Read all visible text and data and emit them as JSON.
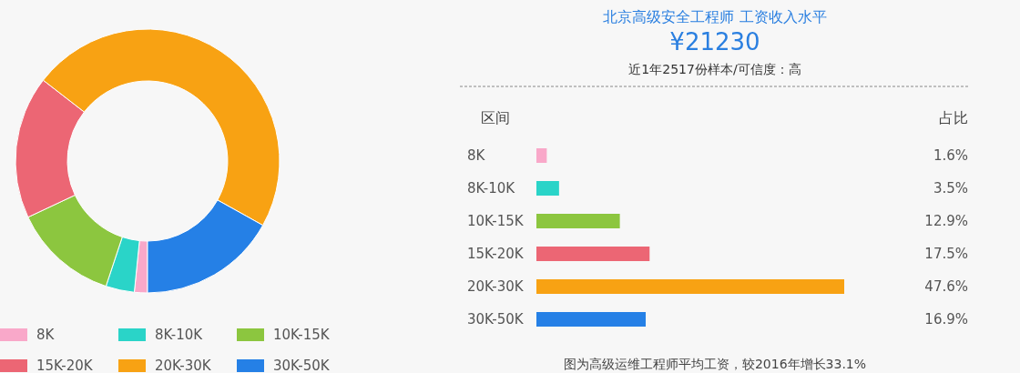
{
  "chart_data": [
    {
      "type": "donut",
      "categories": [
        "8K",
        "8K-10K",
        "10K-15K",
        "15K-20K",
        "20K-30K",
        "30K-50K"
      ],
      "values": [
        1.6,
        3.5,
        12.9,
        17.5,
        47.6,
        16.9
      ],
      "colors": [
        "#f9a8c9",
        "#2ad4c8",
        "#8cc63f",
        "#ec6674",
        "#f8a213",
        "#2580e6"
      ],
      "legend": "bottom"
    },
    {
      "type": "bar",
      "orientation": "horizontal",
      "title": "北京高级安全工程师 工资收入水平",
      "subtitle": "¥21230",
      "categories": [
        "8K",
        "8K-10K",
        "10K-15K",
        "15K-20K",
        "20K-30K",
        "30K-50K"
      ],
      "values": [
        1.6,
        3.5,
        12.9,
        17.5,
        47.6,
        16.9
      ],
      "value_labels": [
        "1.6%",
        "3.5%",
        "12.9%",
        "17.5%",
        "47.6%",
        "16.9%"
      ],
      "colors": [
        "#f9a8c9",
        "#2ad4c8",
        "#8cc63f",
        "#ec6674",
        "#f8a213",
        "#2580e6"
      ],
      "annotations": [
        "近1年2517份样本/可信度：高",
        "区间",
        "占比",
        "图为高级运维工程师平均工资，较2016年增长33.1%"
      ]
    }
  ]
}
